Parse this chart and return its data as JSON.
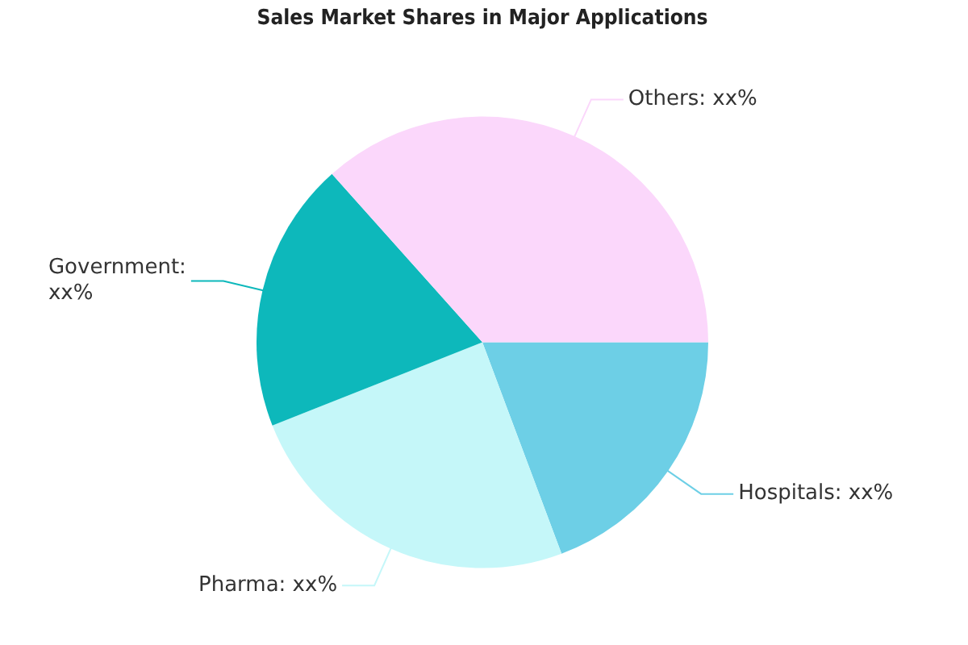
{
  "chart_data": {
    "type": "pie",
    "title": "Sales Market Shares in Major Applications",
    "categories": [
      "Hospitals: xx%",
      "Pharma: xx%",
      "Government: xx%",
      "Others: xx%"
    ],
    "values": [
      19.3,
      24.7,
      19.4,
      36.6
    ],
    "colors": [
      "#6dcfe6",
      "#c5f7f9",
      "#0db8bb",
      "#fbd7fb"
    ],
    "legend": false
  }
}
